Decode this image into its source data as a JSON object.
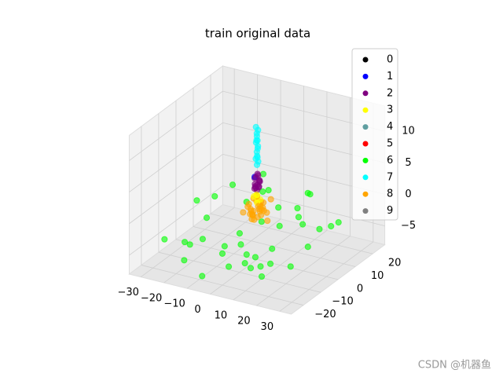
{
  "chart_data": {
    "type": "scatter3d",
    "title": "train original data",
    "xlim": [
      -35,
      35
    ],
    "ylim": [
      -27,
      27
    ],
    "zlim": [
      -8,
      14
    ],
    "xticks": [
      {
        "value": -30,
        "label": "−30"
      },
      {
        "value": -20,
        "label": "−20"
      },
      {
        "value": -10,
        "label": "−10"
      },
      0,
      10,
      20,
      30
    ],
    "yticks": [
      {
        "value": -20,
        "label": "−20"
      },
      {
        "value": -10,
        "label": "−10"
      },
      0,
      10,
      20
    ],
    "zticks": [
      {
        "value": -5,
        "label": "−5"
      },
      0,
      5,
      10
    ],
    "grid": true,
    "legend": "upper right",
    "series": [
      {
        "name": "0",
        "color": "#000000",
        "x": [],
        "y": [],
        "z": []
      },
      {
        "name": "1",
        "color": "#0000ff",
        "x": [
          -1
        ],
        "y": [
          0
        ],
        "z": [
          5
        ]
      },
      {
        "name": "2",
        "color": "#800080",
        "x": [
          0,
          0.5,
          -0.5,
          1,
          -1,
          0,
          0.5,
          -0.5,
          0,
          1,
          -1,
          0.3,
          -0.3,
          0,
          0.6
        ],
        "y": [
          0,
          0.5,
          -0.5,
          0,
          0.5,
          -1,
          1,
          0,
          0.3,
          -0.3,
          0,
          1,
          -1,
          0.6,
          -0.6
        ],
        "z": [
          3,
          3.5,
          4,
          4.5,
          3.2,
          3.8,
          4.2,
          5,
          5.5,
          3.6,
          4.8,
          4.4,
          3.4,
          5.2,
          4
        ]
      },
      {
        "name": "3",
        "color": "#ffff00",
        "x": [
          0,
          1,
          -1,
          0.5,
          -0.5,
          0
        ],
        "y": [
          0,
          0.5,
          -0.5,
          -1,
          1,
          0
        ],
        "z": [
          1,
          1.5,
          2,
          2.5,
          1.2,
          2.2
        ]
      },
      {
        "name": "4",
        "color": "#5f9ea0",
        "x": [],
        "y": [],
        "z": []
      },
      {
        "name": "5",
        "color": "#ff0000",
        "x": [],
        "y": [],
        "z": []
      },
      {
        "name": "6",
        "color": "#00ff00",
        "x": [
          -25,
          -20,
          -15,
          -10,
          -5,
          0,
          5,
          10,
          15,
          20,
          25,
          -22,
          -12,
          -2,
          8,
          18,
          -18,
          -8,
          2,
          12,
          22,
          -24,
          -14,
          -4,
          6,
          16,
          24,
          -16,
          -6,
          4,
          14,
          -20,
          10,
          20,
          0,
          -10,
          18,
          -26,
          26,
          6
        ],
        "y": [
          -20,
          -15,
          -22,
          -18,
          -25,
          -20,
          -23,
          -17,
          -21,
          -19,
          -14,
          5,
          10,
          15,
          20,
          12,
          -5,
          -8,
          -12,
          -3,
          0,
          18,
          22,
          8,
          -15,
          5,
          15,
          25,
          -2,
          24,
          -10,
          -12,
          10,
          -24,
          -6,
          20,
          -22,
          0,
          8,
          16
        ],
        "z": [
          -3,
          -4,
          -5,
          -2,
          -6,
          -3,
          -4,
          -5,
          -2,
          -3,
          -4,
          -1,
          -2,
          -3,
          -1,
          -4,
          -2,
          -5,
          -3,
          -1,
          -4,
          -2,
          -3,
          -4,
          -5,
          -2,
          -3,
          -1,
          -4,
          -2,
          -3,
          -5,
          -1,
          -4,
          -6,
          -2,
          -3,
          -1,
          -2,
          -4
        ]
      },
      {
        "name": "7",
        "color": "#00ffff",
        "x": [
          0,
          0.3,
          -0.3,
          0.2,
          -0.2,
          0,
          0.4,
          -0.4,
          0.1,
          -0.1,
          0,
          0.3,
          -0.3,
          0.2,
          0
        ],
        "y": [
          0,
          0.3,
          -0.3,
          -0.2,
          0.2,
          0.4,
          0,
          0,
          -0.4,
          0.1,
          -0.1,
          0.2,
          -0.2,
          0,
          0.3
        ],
        "z": [
          7,
          7.5,
          8,
          8.5,
          9,
          9.5,
          10,
          10.5,
          11,
          11.5,
          12,
          12.5,
          13,
          8.2,
          10.8
        ]
      },
      {
        "name": "8",
        "color": "#ffa500",
        "x": [
          -4,
          -3,
          -2,
          -1,
          0,
          1,
          2,
          3,
          4,
          -3,
          -1,
          1,
          3,
          -2,
          0,
          2,
          -4,
          4,
          -1,
          1,
          -2,
          2,
          0,
          3,
          -3,
          1,
          -1,
          2,
          -2,
          0
        ],
        "y": [
          0,
          2,
          -2,
          3,
          -3,
          1,
          -1,
          2,
          -2,
          -4,
          4,
          -4,
          4,
          0,
          2,
          -2,
          3,
          -3,
          1,
          -1,
          -1,
          3,
          0,
          0,
          2,
          -3,
          -2,
          1,
          4,
          -4
        ],
        "z": [
          0,
          -1,
          1,
          0,
          -1,
          1,
          0,
          -2,
          1,
          0,
          -1,
          0,
          1,
          -1,
          0,
          1,
          -2,
          0,
          1,
          -1,
          0,
          -1,
          2,
          0,
          1,
          -1,
          0,
          1,
          -1,
          0
        ]
      },
      {
        "name": "9",
        "color": "#808080",
        "x": [],
        "y": [],
        "z": []
      }
    ]
  },
  "watermark": "CSDN @机器鱼"
}
